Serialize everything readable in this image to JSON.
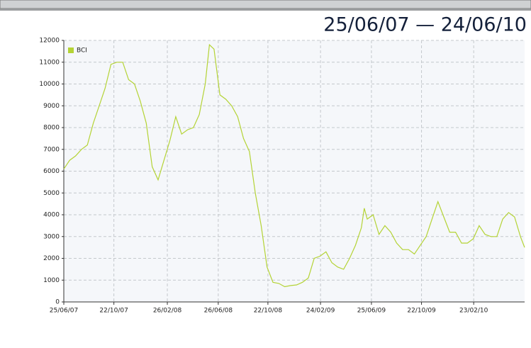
{
  "chart_data": {
    "type": "line",
    "title": "25/06/07 — 24/06/10",
    "x": [
      "25/06/07",
      "09/07/07",
      "23/07/07",
      "06/08/07",
      "20/08/07",
      "03/09/07",
      "17/09/07",
      "01/10/07",
      "15/10/07",
      "29/10/07",
      "12/11/07",
      "26/11/07",
      "10/12/07",
      "24/12/07",
      "07/01/08",
      "21/01/08",
      "04/02/08",
      "18/02/08",
      "03/03/08",
      "17/03/08",
      "31/03/08",
      "14/04/08",
      "28/04/08",
      "12/05/08",
      "26/05/08",
      "05/06/08",
      "16/06/08",
      "30/06/08",
      "14/07/08",
      "28/07/08",
      "11/08/08",
      "25/08/08",
      "08/09/08",
      "22/09/08",
      "06/10/08",
      "20/10/08",
      "03/11/08",
      "17/11/08",
      "01/12/08",
      "15/12/08",
      "29/12/08",
      "12/01/09",
      "26/01/09",
      "09/02/09",
      "23/02/09",
      "09/03/09",
      "23/03/09",
      "06/04/09",
      "20/04/09",
      "04/05/09",
      "18/05/09",
      "01/06/09",
      "08/06/09",
      "15/06/09",
      "29/06/09",
      "13/07/09",
      "27/07/09",
      "10/08/09",
      "24/08/09",
      "07/09/09",
      "21/09/09",
      "05/10/09",
      "19/10/09",
      "02/11/09",
      "16/11/09",
      "30/11/09",
      "14/12/09",
      "28/12/09",
      "11/01/10",
      "25/01/10",
      "08/02/10",
      "22/02/10",
      "08/03/10",
      "22/03/10",
      "05/04/10",
      "19/04/10",
      "03/05/10",
      "17/05/10",
      "31/05/10",
      "14/06/10",
      "24/06/10"
    ],
    "series": [
      {
        "name": "BCI",
        "color": "#b4d335",
        "values": [
          6100,
          6500,
          6700,
          7000,
          7200,
          8200,
          9000,
          9800,
          10900,
          11000,
          11000,
          10200,
          10000,
          9200,
          8200,
          6200,
          5600,
          6500,
          7400,
          8500,
          7700,
          7900,
          8000,
          8600,
          10000,
          11800,
          11600,
          9500,
          9300,
          9000,
          8500,
          7500,
          6900,
          5000,
          3500,
          1600,
          900,
          850,
          700,
          750,
          780,
          900,
          1100,
          2000,
          2100,
          2300,
          1800,
          1600,
          1500,
          2000,
          2600,
          3400,
          4300,
          3800,
          4000,
          3100,
          3500,
          3200,
          2700,
          2400,
          2400,
          2200,
          2600,
          3000,
          3800,
          4600,
          3900,
          3200,
          3200,
          2700,
          2700,
          2900,
          3500,
          3100,
          3000,
          3000,
          3800,
          4100,
          3900,
          3000,
          2500
        ]
      }
    ],
    "xlim": [
      "25/06/07",
      "24/06/10"
    ],
    "xticks": [
      "25/06/07",
      "22/10/07",
      "26/02/08",
      "26/06/08",
      "22/10/08",
      "24/02/09",
      "25/06/09",
      "22/10/09",
      "23/02/10"
    ],
    "ylim": [
      0,
      12000
    ],
    "yticks": [
      0,
      1000,
      2000,
      3000,
      4000,
      5000,
      6000,
      7000,
      8000,
      9000,
      10000,
      11000,
      12000
    ],
    "grid": true,
    "legend": "top-left"
  }
}
